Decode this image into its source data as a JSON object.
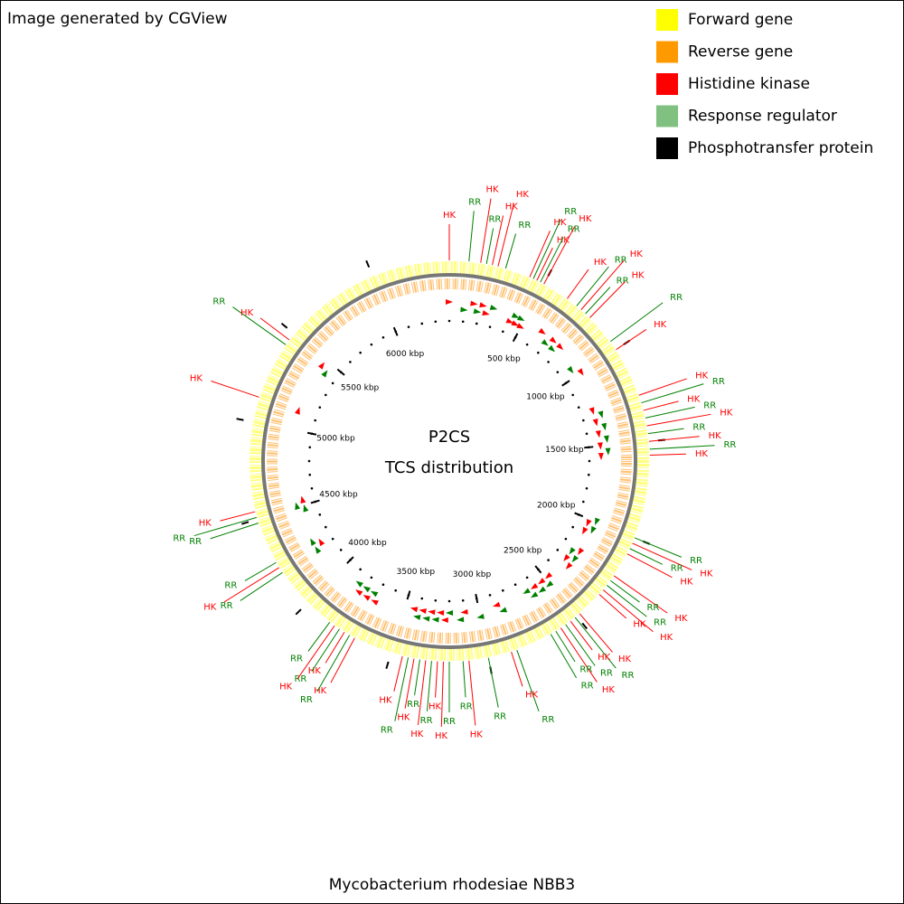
{
  "header": "Image generated by CGView",
  "legend": [
    {
      "name": "Forward gene",
      "color": "#ffff00"
    },
    {
      "name": "Reverse gene",
      "color": "#ff9900"
    },
    {
      "name": "Histidine kinase",
      "color": "#ff0000"
    },
    {
      "name": "Response regulator",
      "color": "#80c080"
    },
    {
      "name": "Phosphotransfer protein",
      "color": "#000000"
    }
  ],
  "center_title": [
    "P2CS",
    "TCS distribution"
  ],
  "footer": "Mycobacterium rhodesiae NBB3",
  "range_kbp": [
    0,
    6400
  ],
  "ticks": [
    {
      "value": 500,
      "label": "500 kbp"
    },
    {
      "value": 1000,
      "label": "1000 kbp"
    },
    {
      "value": 1500,
      "label": "1500 kbp"
    },
    {
      "value": 2000,
      "label": "2000 kbp"
    },
    {
      "value": 2500,
      "label": "2500 kbp"
    },
    {
      "value": 3000,
      "label": "3000 kbp"
    },
    {
      "value": 3500,
      "label": "3500 kbp"
    },
    {
      "value": 4000,
      "label": "4000 kbp"
    },
    {
      "value": 4500,
      "label": "4500 kbp"
    },
    {
      "value": 5000,
      "label": "5000 kbp"
    },
    {
      "value": 5500,
      "label": "5500 kbp"
    },
    {
      "value": 6000,
      "label": "6000 kbp"
    }
  ],
  "features": [
    {
      "label": "HK",
      "kbp": 0,
      "color": "#ff0000"
    },
    {
      "label": "RR",
      "kbp": 100,
      "color": "#008000"
    },
    {
      "label": "HK",
      "kbp": 160,
      "color": "#ff0000"
    },
    {
      "label": "RR",
      "kbp": 190,
      "color": "#008000"
    },
    {
      "label": "HK",
      "kbp": 220,
      "color": "#ff0000"
    },
    {
      "label": "HK",
      "kbp": 250,
      "color": "#ff0000"
    },
    {
      "label": "RR",
      "kbp": 290,
      "color": "#008000"
    },
    {
      "label": "HK",
      "kbp": 420,
      "color": "#ff0000"
    },
    {
      "label": "RR",
      "kbp": 440,
      "color": "#008000"
    },
    {
      "label": "HK",
      "kbp": 460,
      "color": "#ff0000"
    },
    {
      "label": "RR",
      "kbp": 480,
      "color": "#008000"
    },
    {
      "label": "HK",
      "kbp": 500,
      "color": "#ff0000"
    },
    {
      "label": "HK",
      "kbp": 640,
      "color": "#ff0000"
    },
    {
      "label": "RR",
      "kbp": 700,
      "color": "#008000"
    },
    {
      "label": "HK",
      "kbp": 730,
      "color": "#ff0000"
    },
    {
      "label": "RR",
      "kbp": 760,
      "color": "#008000"
    },
    {
      "label": "HK",
      "kbp": 790,
      "color": "#ff0000"
    },
    {
      "label": "RR",
      "kbp": 950,
      "color": "#008000"
    },
    {
      "label": "HK",
      "kbp": 1000,
      "color": "#ff0000"
    },
    {
      "label": "HK",
      "kbp": 1260,
      "color": "#ff0000"
    },
    {
      "label": "RR",
      "kbp": 1300,
      "color": "#008000"
    },
    {
      "label": "HK",
      "kbp": 1340,
      "color": "#ff0000"
    },
    {
      "label": "RR",
      "kbp": 1380,
      "color": "#008000"
    },
    {
      "label": "HK",
      "kbp": 1420,
      "color": "#ff0000"
    },
    {
      "label": "RR",
      "kbp": 1460,
      "color": "#008000"
    },
    {
      "label": "HK",
      "kbp": 1500,
      "color": "#ff0000"
    },
    {
      "label": "RR",
      "kbp": 1540,
      "color": "#008000"
    },
    {
      "label": "HK",
      "kbp": 1570,
      "color": "#ff0000"
    },
    {
      "label": "RR",
      "kbp": 2000,
      "color": "#008000"
    },
    {
      "label": "HK",
      "kbp": 2030,
      "color": "#ff0000"
    },
    {
      "label": "RR",
      "kbp": 2060,
      "color": "#008000"
    },
    {
      "label": "HK",
      "kbp": 2090,
      "color": "#ff0000"
    },
    {
      "label": "HK",
      "kbp": 2220,
      "color": "#ff0000"
    },
    {
      "label": "RR",
      "kbp": 2250,
      "color": "#008000"
    },
    {
      "label": "RR",
      "kbp": 2280,
      "color": "#008000"
    },
    {
      "label": "HK",
      "kbp": 2310,
      "color": "#ff0000"
    },
    {
      "label": "HK",
      "kbp": 2340,
      "color": "#ff0000"
    },
    {
      "label": "HK",
      "kbp": 2480,
      "color": "#ff0000"
    },
    {
      "label": "RR",
      "kbp": 2510,
      "color": "#008000"
    },
    {
      "label": "HK",
      "kbp": 2540,
      "color": "#ff0000"
    },
    {
      "label": "RR",
      "kbp": 2570,
      "color": "#008000"
    },
    {
      "label": "HK",
      "kbp": 2600,
      "color": "#ff0000"
    },
    {
      "label": "RR",
      "kbp": 2630,
      "color": "#008000"
    },
    {
      "label": "RR",
      "kbp": 2660,
      "color": "#008000"
    },
    {
      "label": "RR",
      "kbp": 2850,
      "color": "#008000"
    },
    {
      "label": "HK",
      "kbp": 2880,
      "color": "#ff0000"
    },
    {
      "label": "RR",
      "kbp": 3000,
      "color": "#008000"
    },
    {
      "label": "HK",
      "kbp": 3100,
      "color": "#ff0000"
    },
    {
      "label": "RR",
      "kbp": 3130,
      "color": "#008000"
    },
    {
      "label": "RR",
      "kbp": 3200,
      "color": "#008000"
    },
    {
      "label": "HK",
      "kbp": 3230,
      "color": "#ff0000"
    },
    {
      "label": "HK",
      "kbp": 3260,
      "color": "#ff0000"
    },
    {
      "label": "RR",
      "kbp": 3290,
      "color": "#008000"
    },
    {
      "label": "HK",
      "kbp": 3320,
      "color": "#ff0000"
    },
    {
      "label": "RR",
      "kbp": 3350,
      "color": "#008000"
    },
    {
      "label": "HK",
      "kbp": 3380,
      "color": "#ff0000"
    },
    {
      "label": "RR",
      "kbp": 3410,
      "color": "#008000"
    },
    {
      "label": "HK",
      "kbp": 3440,
      "color": "#ff0000"
    },
    {
      "label": "HK",
      "kbp": 3700,
      "color": "#ff0000"
    },
    {
      "label": "RR",
      "kbp": 3730,
      "color": "#008000"
    },
    {
      "label": "HK",
      "kbp": 3760,
      "color": "#ff0000"
    },
    {
      "label": "RR",
      "kbp": 3790,
      "color": "#008000"
    },
    {
      "label": "HK",
      "kbp": 3820,
      "color": "#ff0000"
    },
    {
      "label": "RR",
      "kbp": 3850,
      "color": "#008000"
    },
    {
      "label": "RR",
      "kbp": 4200,
      "color": "#008000"
    },
    {
      "label": "HK",
      "kbp": 4230,
      "color": "#ff0000"
    },
    {
      "label": "RR",
      "kbp": 4260,
      "color": "#008000"
    },
    {
      "label": "RR",
      "kbp": 4480,
      "color": "#008000"
    },
    {
      "label": "RR",
      "kbp": 4510,
      "color": "#008000"
    },
    {
      "label": "HK",
      "kbp": 4540,
      "color": "#ff0000"
    },
    {
      "label": "HK",
      "kbp": 5130,
      "color": "#ff0000"
    },
    {
      "label": "RR",
      "kbp": 5430,
      "color": "#008000"
    },
    {
      "label": "HK",
      "kbp": 5460,
      "color": "#ff0000"
    }
  ]
}
